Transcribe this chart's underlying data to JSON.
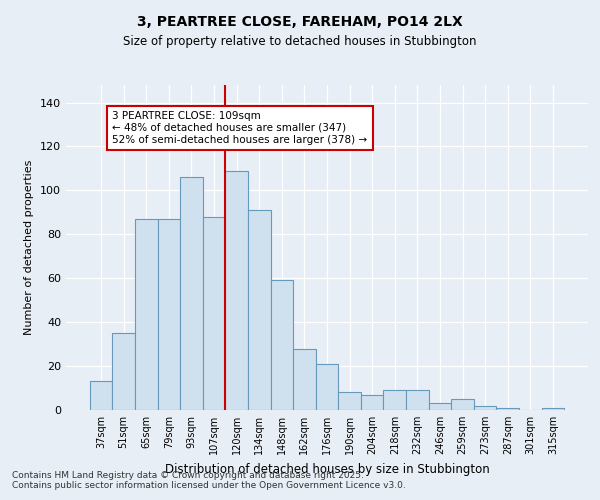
{
  "title_line1": "3, PEARTREE CLOSE, FAREHAM, PO14 2LX",
  "title_line2": "Size of property relative to detached houses in Stubbington",
  "xlabel": "Distribution of detached houses by size in Stubbington",
  "ylabel": "Number of detached properties",
  "bar_labels": [
    "37sqm",
    "51sqm",
    "65sqm",
    "79sqm",
    "93sqm",
    "107sqm",
    "120sqm",
    "134sqm",
    "148sqm",
    "162sqm",
    "176sqm",
    "190sqm",
    "204sqm",
    "218sqm",
    "232sqm",
    "246sqm",
    "259sqm",
    "273sqm",
    "287sqm",
    "301sqm",
    "315sqm"
  ],
  "bar_values": [
    13,
    35,
    87,
    87,
    106,
    88,
    109,
    91,
    59,
    28,
    21,
    8,
    7,
    9,
    9,
    3,
    5,
    2,
    1,
    0,
    1
  ],
  "bar_color": "#cfe0ee",
  "bar_edge_color": "#6699bb",
  "property_line_x": 6.0,
  "red_line_color": "#cc0000",
  "annotation_line1": "3 PEARTREE CLOSE: 109sqm",
  "annotation_line2": "← 48% of detached houses are smaller (347)",
  "annotation_line3": "52% of semi-detached houses are larger (378) →",
  "annotation_box_color": "#ffffff",
  "annotation_box_edgecolor": "#cc0000",
  "ylim_max": 148,
  "yticks": [
    0,
    20,
    40,
    60,
    80,
    100,
    120,
    140
  ],
  "footnote1": "Contains HM Land Registry data © Crown copyright and database right 2025.",
  "footnote2": "Contains public sector information licensed under the Open Government Licence v3.0.",
  "bg_color": "#e8eef5",
  "grid_color": "#ffffff"
}
